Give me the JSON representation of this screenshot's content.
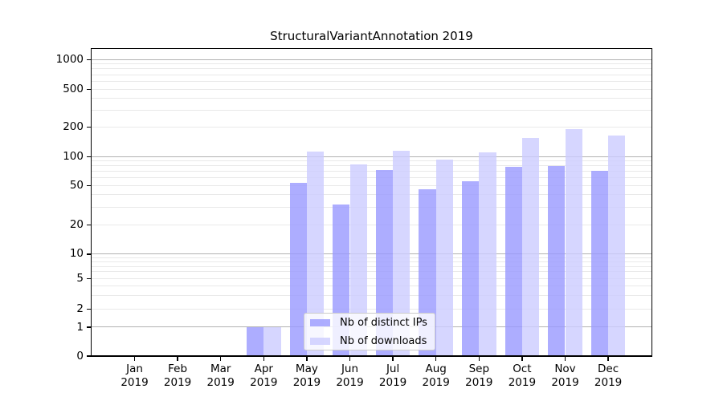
{
  "title": "StructuralVariantAnnotation 2019",
  "chart_data": {
    "type": "bar",
    "title": "StructuralVariantAnnotation 2019",
    "categories": [
      "Jan 2019",
      "Feb 2019",
      "Mar 2019",
      "Apr 2019",
      "May 2019",
      "Jun 2019",
      "Jul 2019",
      "Aug 2019",
      "Sep 2019",
      "Oct 2019",
      "Nov 2019",
      "Dec 2019"
    ],
    "x_tick_month": [
      "Jan",
      "Feb",
      "Mar",
      "Apr",
      "May",
      "Jun",
      "Jul",
      "Aug",
      "Sep",
      "Oct",
      "Nov",
      "Dec"
    ],
    "x_tick_year": "2019",
    "series": [
      {
        "name": "Nb of distinct IPs",
        "color": "#9999ff",
        "values": [
          0,
          0,
          0,
          1,
          54,
          32,
          73,
          46,
          56,
          78,
          80,
          71
        ]
      },
      {
        "name": "Nb of downloads",
        "color": "#ccccff",
        "values": [
          0,
          0,
          0,
          1,
          113,
          83,
          116,
          94,
          111,
          155,
          191,
          164
        ]
      }
    ],
    "yscale": "log-like (0 baseline, log above 1)",
    "y_tick_values": [
      0,
      1,
      2,
      5,
      10,
      20,
      50,
      100,
      200,
      500,
      1000
    ],
    "y_tick_labels": [
      "0",
      "1",
      "2",
      "5",
      "10",
      "20",
      "50",
      "100",
      "200",
      "500",
      "1000"
    ],
    "y_minor_gridline_values": [
      3,
      4,
      6,
      7,
      8,
      9,
      30,
      40,
      60,
      70,
      80,
      90,
      300,
      400,
      600,
      700,
      800,
      900
    ],
    "grid": true,
    "legend_position": "lower center inside plot"
  },
  "legend": {
    "item1": "Nb of distinct IPs",
    "item2": "Nb of downloads"
  },
  "colors": {
    "series1": "#9999ff",
    "series2": "#ccccff",
    "bar_alpha": "0.8",
    "grid_major": "#b2b2b2",
    "grid_minor": "#e9e9e9",
    "spine": "#000000",
    "background": "#ffffff"
  }
}
